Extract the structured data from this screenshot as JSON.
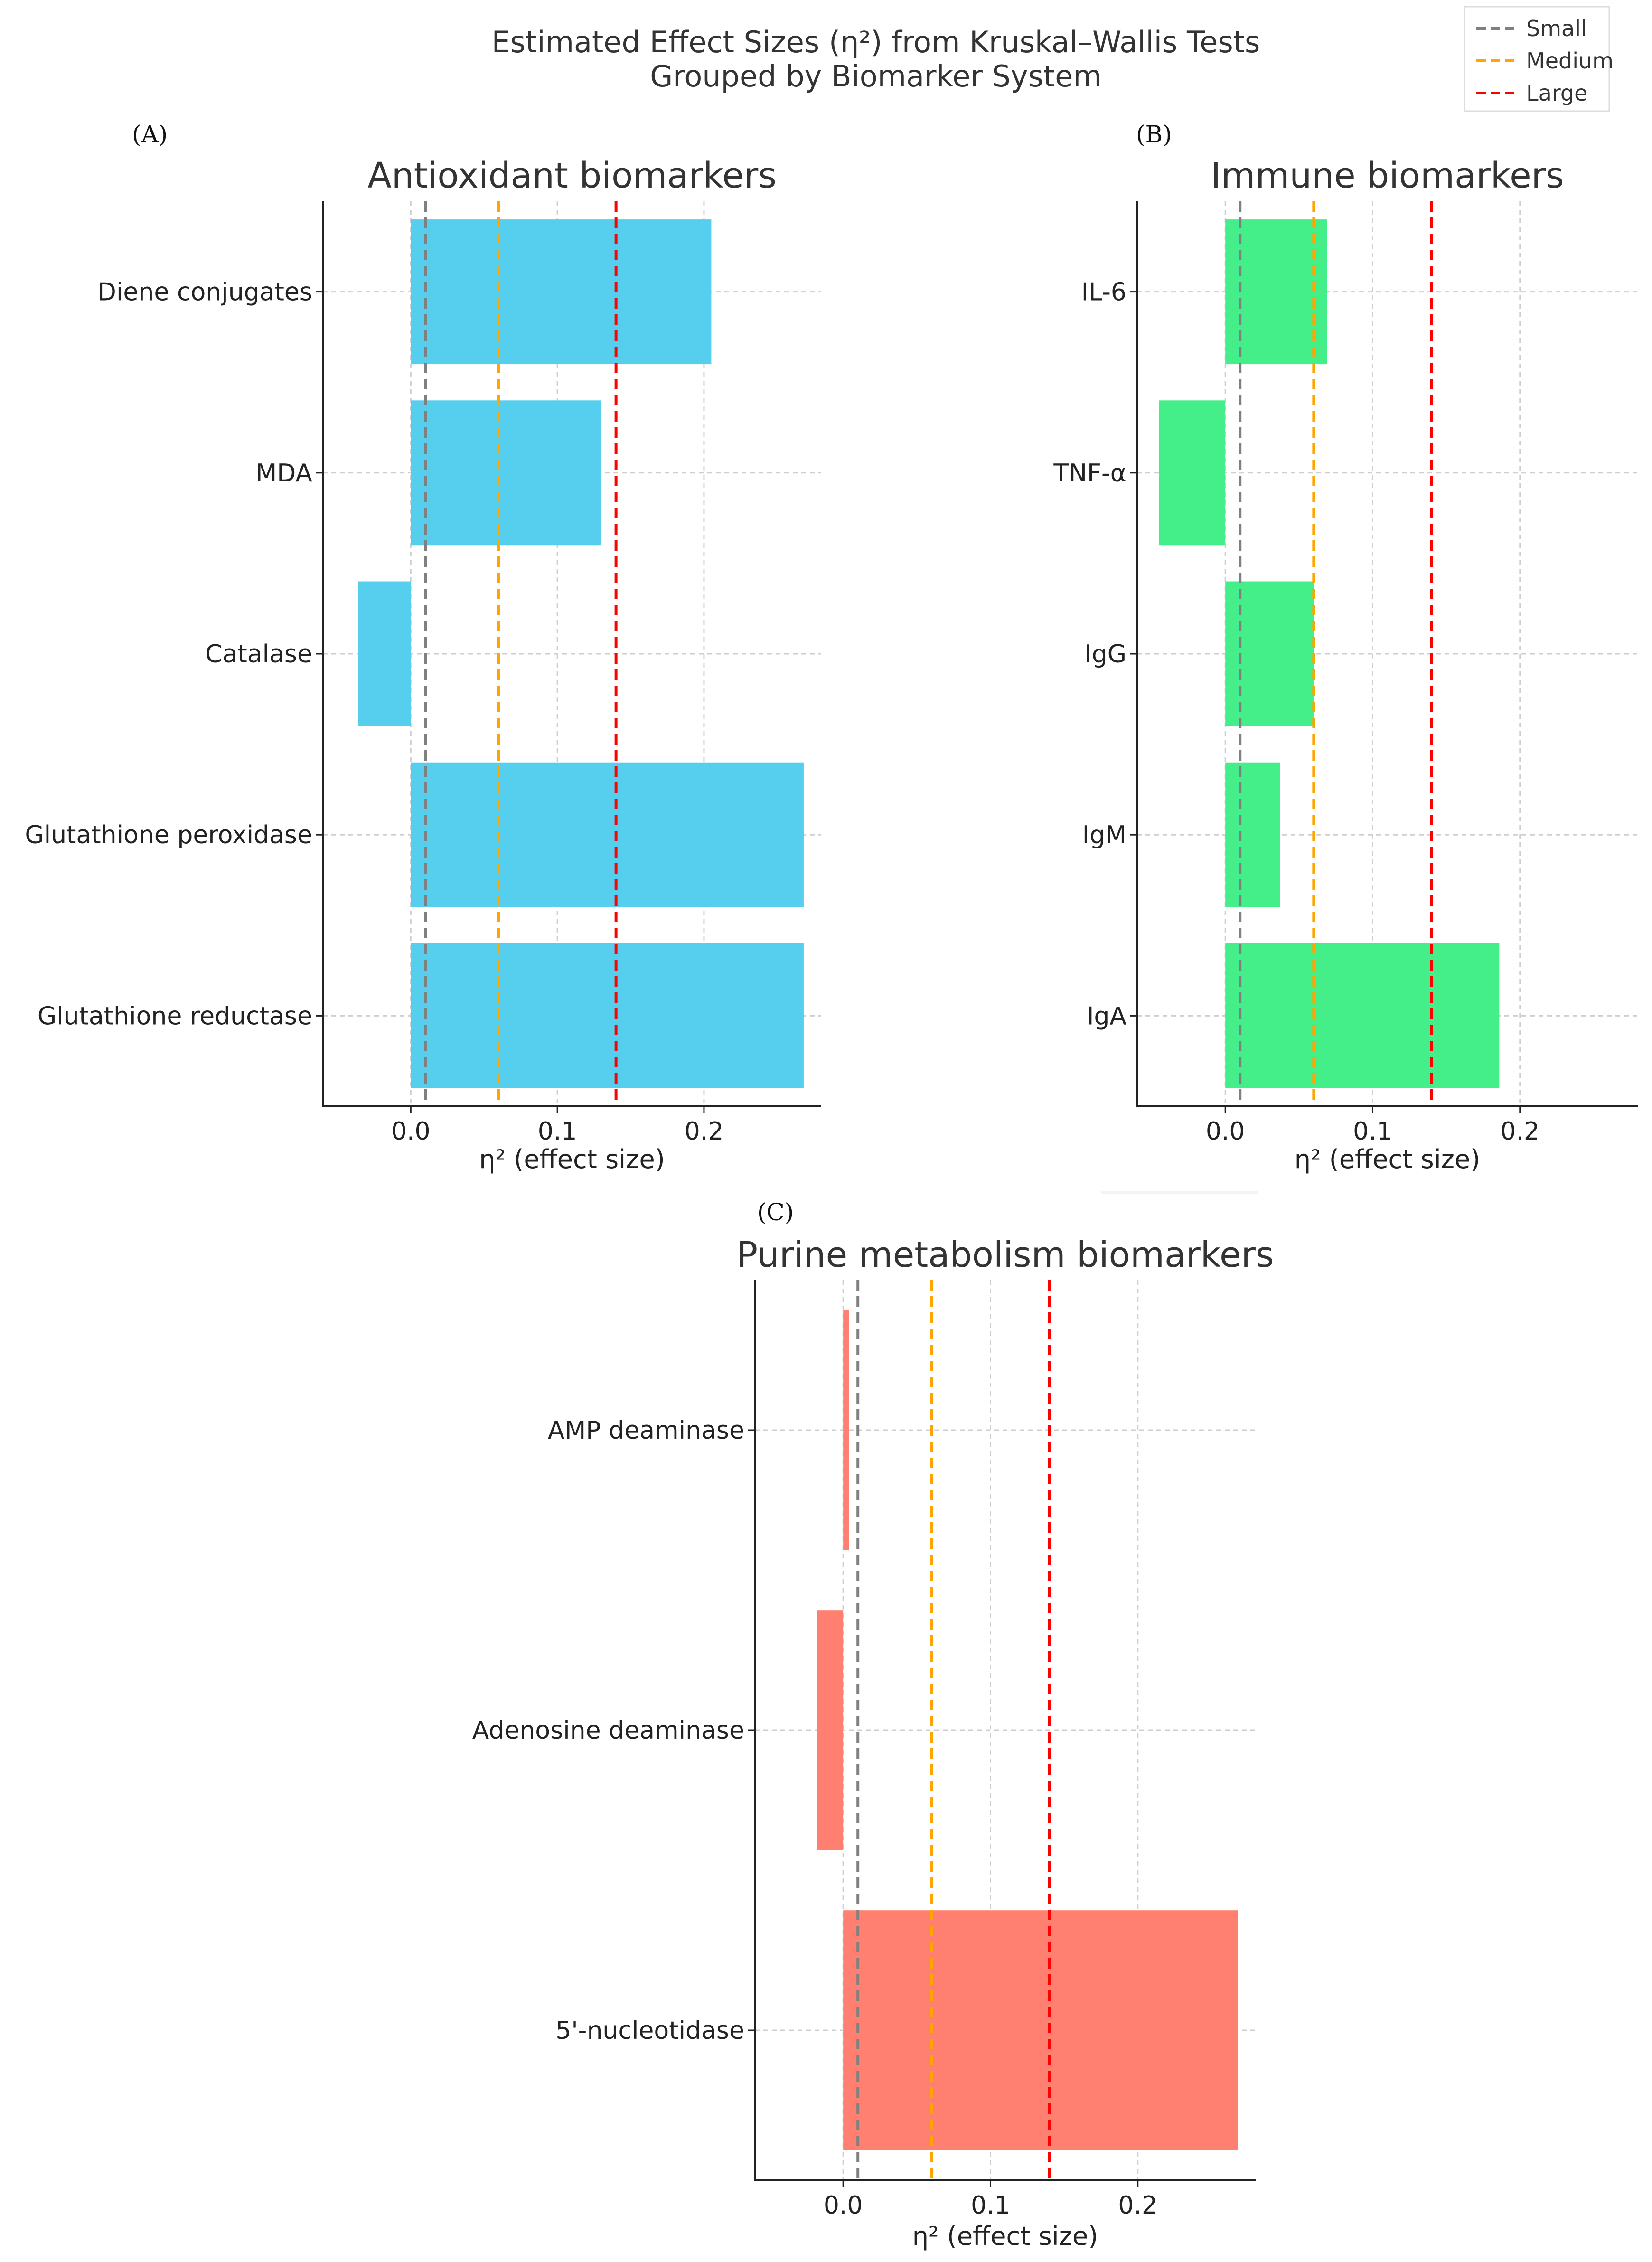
{
  "figure": {
    "title_line1": "Estimated Effect Sizes (η²) from Kruskal–Wallis Tests",
    "title_line2": "Grouped by Biomarker System",
    "legend": [
      {
        "label": "Small",
        "value": 0.01,
        "color": "#808080"
      },
      {
        "label": "Medium",
        "value": 0.06,
        "color": "#FFA500"
      },
      {
        "label": "Large",
        "value": 0.14,
        "color": "#FF0000"
      }
    ]
  },
  "chart_data": [
    {
      "type": "bar",
      "orientation": "horizontal",
      "panel_label": "(A)",
      "title": "Antioxidant biomarkers",
      "xlabel": "η² (effect size)",
      "ylabel": "",
      "xlim": [
        -0.06,
        0.28
      ],
      "xticks": [
        0.0,
        0.1,
        0.2
      ],
      "xtick_labels": [
        "0.0",
        "0.1",
        "0.2"
      ],
      "grid": true,
      "color": "#56CFEE",
      "categories": [
        "Diene conjugates",
        "MDA",
        "Catalase",
        "Glutathione peroxidase",
        "Glutathione reductase"
      ],
      "values": [
        0.205,
        0.13,
        -0.036,
        0.268,
        0.268
      ],
      "thresholds": [
        0.01,
        0.06,
        0.14
      ]
    },
    {
      "type": "bar",
      "orientation": "horizontal",
      "panel_label": "(B)",
      "title": "Immune biomarkers",
      "xlabel": "η² (effect size)",
      "ylabel": "",
      "xlim": [
        -0.06,
        0.28
      ],
      "xticks": [
        0.0,
        0.1,
        0.2
      ],
      "xtick_labels": [
        "0.0",
        "0.1",
        "0.2"
      ],
      "grid": true,
      "color": "#44EE88",
      "categories": [
        "IL-6",
        "TNF-α",
        "IgG",
        "IgM",
        "IgA"
      ],
      "values": [
        0.069,
        -0.045,
        0.06,
        0.037,
        0.186
      ],
      "thresholds": [
        0.01,
        0.06,
        0.14
      ]
    },
    {
      "type": "bar",
      "orientation": "horizontal",
      "panel_label": "(C)",
      "title": "Purine metabolism biomarkers",
      "xlabel": "η² (effect size)",
      "ylabel": "",
      "xlim": [
        -0.06,
        0.28
      ],
      "xticks": [
        0.0,
        0.1,
        0.2
      ],
      "xtick_labels": [
        "0.0",
        "0.1",
        "0.2"
      ],
      "grid": true,
      "color": "#FF8070",
      "categories": [
        "AMP deaminase",
        "Adenosine deaminase",
        "5'-nucleotidase"
      ],
      "values": [
        0.004,
        -0.018,
        0.268
      ],
      "thresholds": [
        0.01,
        0.06,
        0.14
      ]
    }
  ]
}
